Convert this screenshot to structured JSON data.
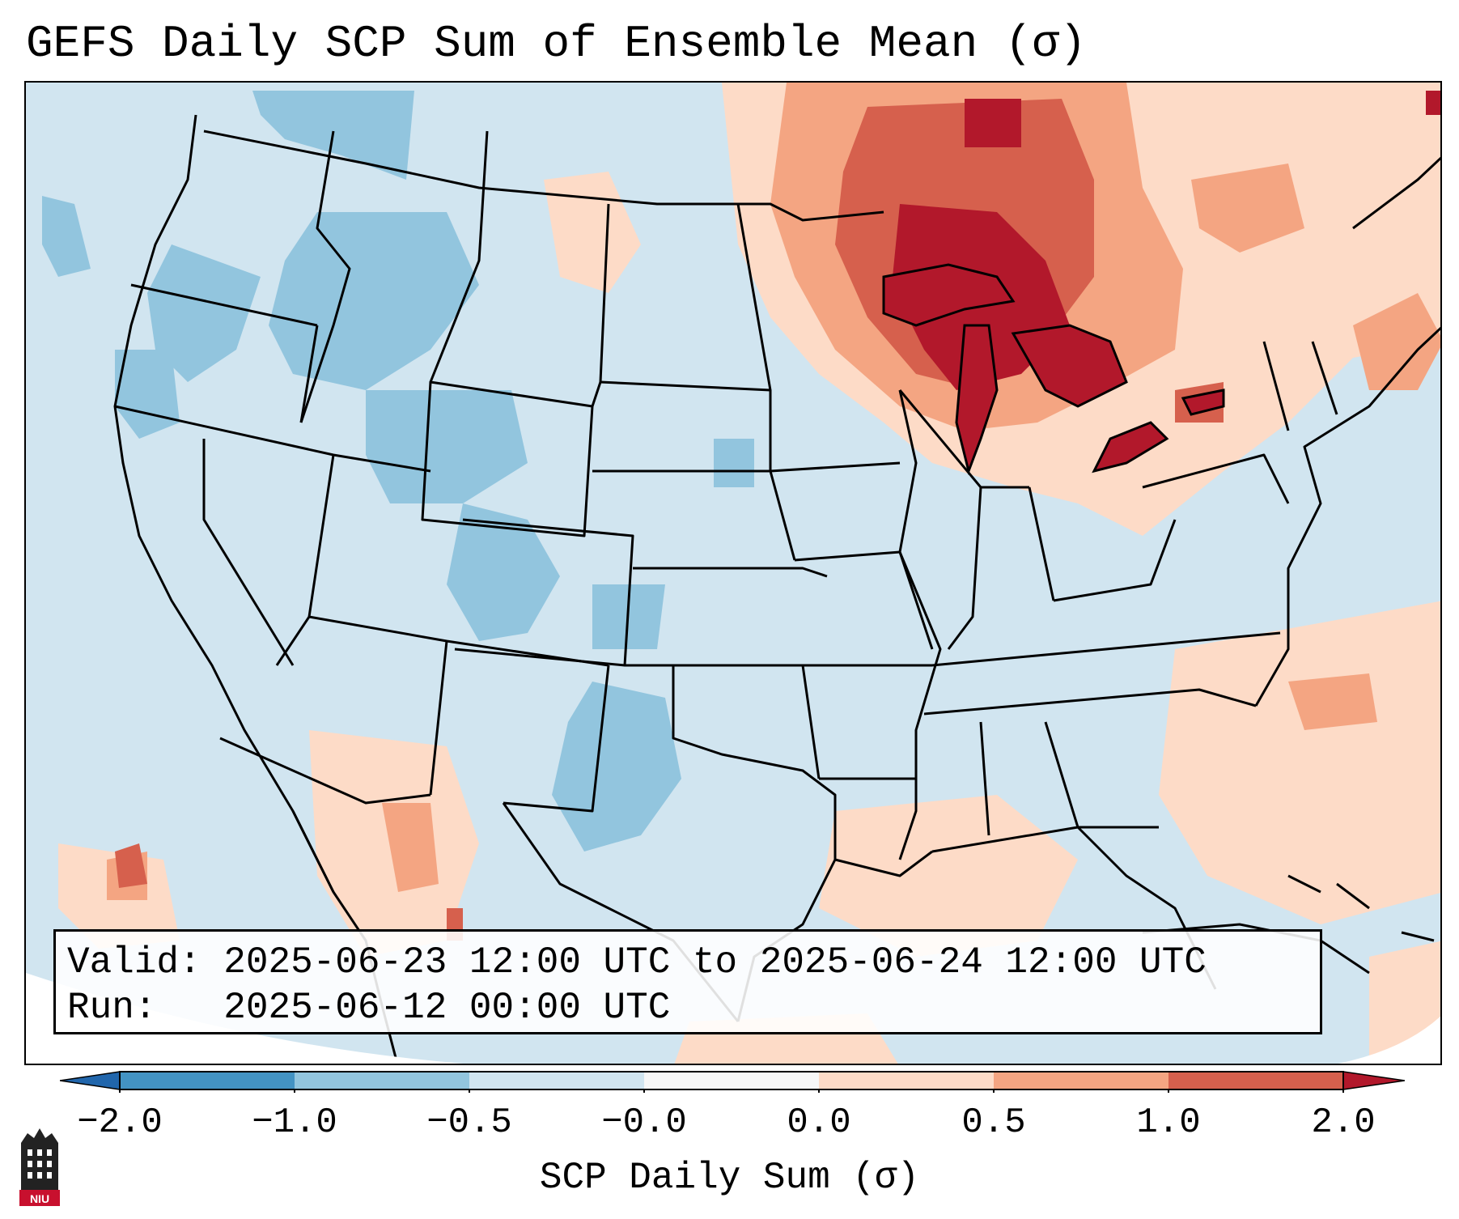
{
  "title": "GEFS Daily SCP Sum of Ensemble Mean (σ)",
  "info": {
    "valid_label": "Valid:",
    "valid_value": "2025-06-23 12:00 UTC to 2025-06-24 12:00 UTC",
    "run_label": "Run:",
    "run_value": "2025-06-12 00:00 UTC"
  },
  "colorbar": {
    "label": "SCP Daily Sum (σ)",
    "ticks": [
      "−2.0",
      "−1.0",
      "−0.5",
      "−0.0",
      "0.0",
      "0.5",
      "1.0",
      "2.0"
    ],
    "colors": [
      "#4393c3",
      "#92c5de",
      "#d1e5f0",
      "#f7f7f7",
      "#fddbc7",
      "#f4a582",
      "#d6604d",
      "#b2182b"
    ]
  },
  "map": {
    "background_color": "#d1e5f0",
    "region": "Contiguous United States",
    "features": [
      "state boundaries",
      "coastlines",
      "Great Lakes"
    ]
  },
  "logo": {
    "text": "NIU"
  }
}
